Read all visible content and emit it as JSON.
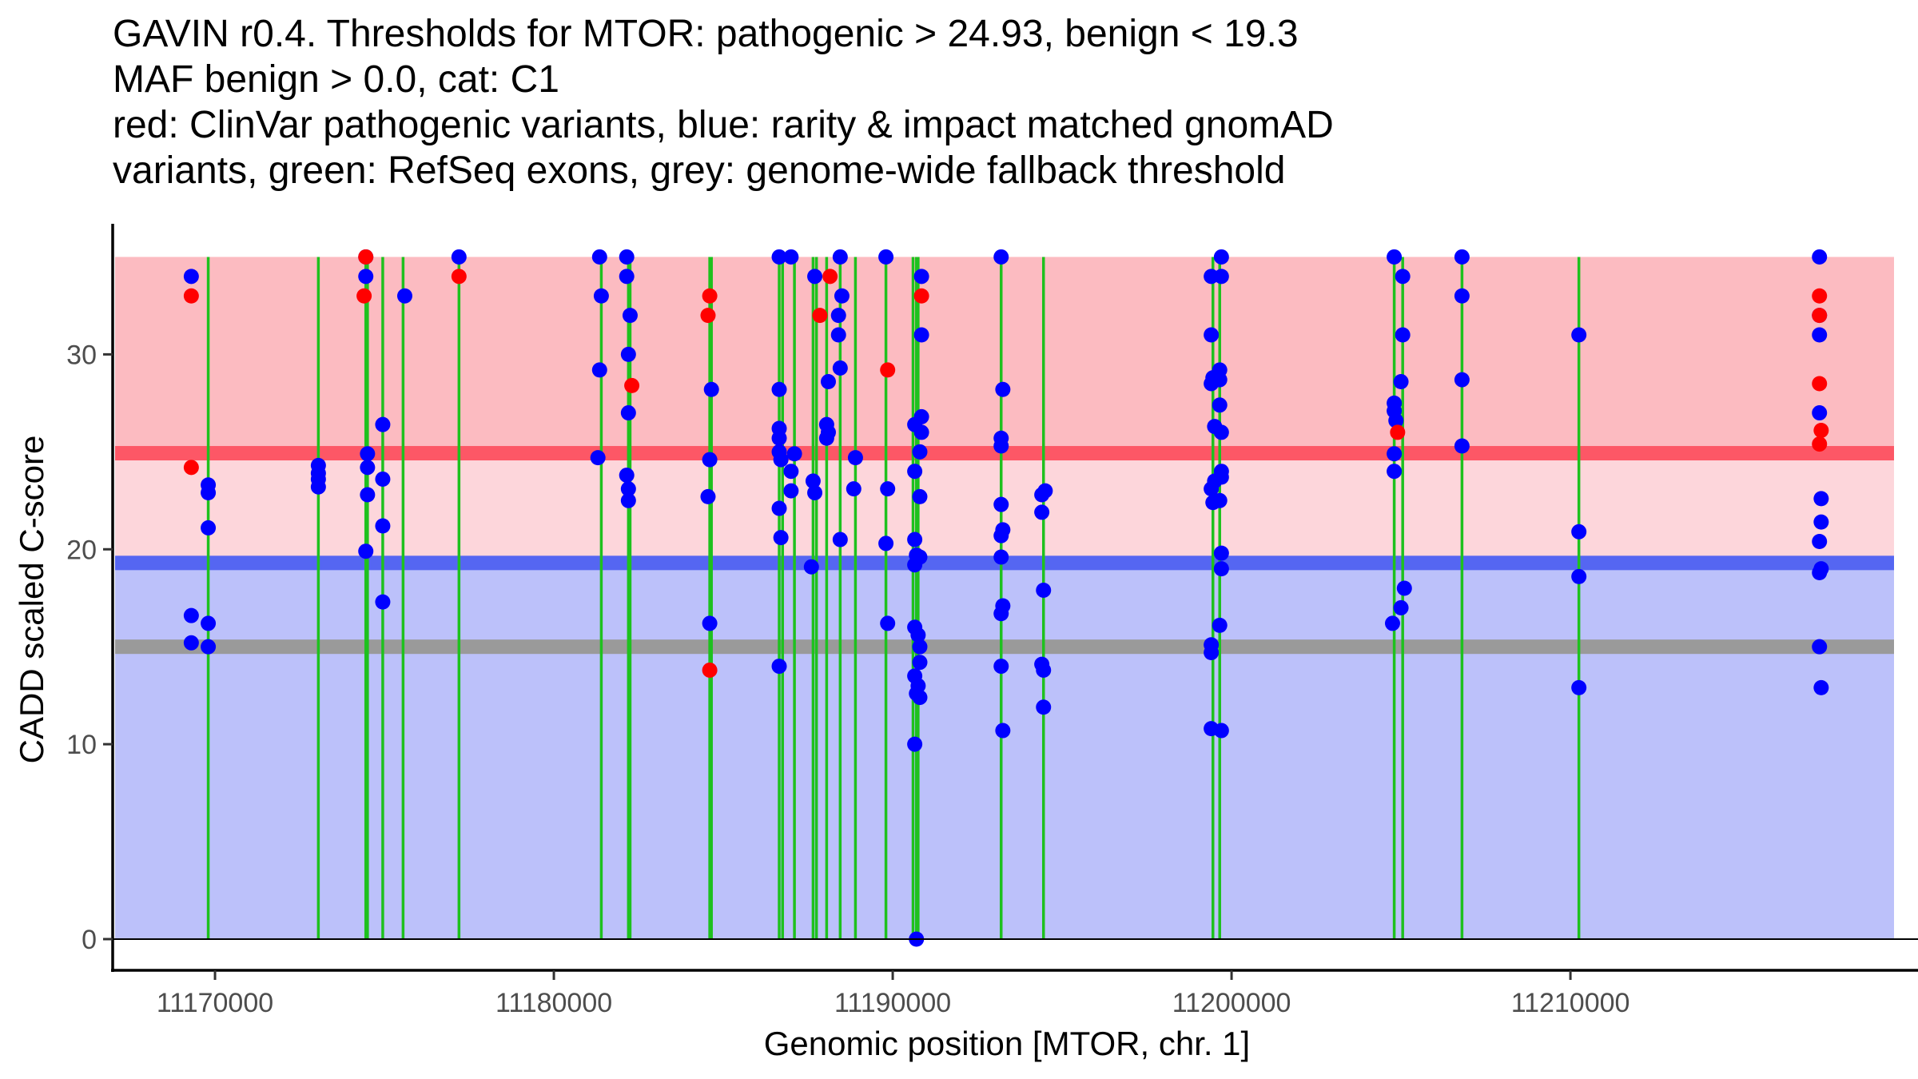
{
  "chart_data": {
    "type": "scatter",
    "title_lines": [
      "GAVIN r0.4. Thresholds for MTOR: pathogenic > 24.93, benign < 19.3",
      "MAF benign > 0.0, cat: C1",
      "red: ClinVar pathogenic variants, blue: rarity & impact matched gnomAD",
      "variants, green: RefSeq exons, grey: genome-wide fallback threshold"
    ],
    "xlabel": "Genomic position [MTOR, chr. 1]",
    "ylabel": "CADD scaled C-score",
    "xlim": [
      11166980,
      11219550
    ],
    "ylim": [
      -1.6,
      36.7
    ],
    "x_ticks": [
      11170000,
      11180000,
      11190000,
      11200000,
      11210000
    ],
    "x_tick_labels": [
      "11170000",
      "11180000",
      "11190000",
      "11200000",
      "11210000"
    ],
    "y_ticks": [
      0,
      10,
      20,
      30
    ],
    "y_tick_labels": [
      "0",
      "10",
      "20",
      "30"
    ],
    "grid": false,
    "regions": [
      {
        "name": "pathogenic-zone",
        "from": 24.93,
        "to": 35,
        "color": "#fcbbc1"
      },
      {
        "name": "vous-zone",
        "from": 19.3,
        "to": 24.93,
        "color": "#fdd6db"
      },
      {
        "name": "benign-zone",
        "from": 0,
        "to": 19.3,
        "color": "#bcc1fa"
      }
    ],
    "thresholds": [
      {
        "name": "pathogenic-threshold",
        "value": 24.93,
        "color": "#fd5766"
      },
      {
        "name": "benign-threshold",
        "value": 19.3,
        "color": "#5566f2"
      },
      {
        "name": "fallback-threshold",
        "value": 15.0,
        "color": "#9a9a9a"
      }
    ],
    "exons": [
      11169800,
      11173050,
      11174450,
      11174500,
      11174950,
      11175550,
      11177200,
      11181400,
      11182200,
      11182250,
      11184600,
      11184650,
      11186650,
      11186750,
      11187100,
      11187650,
      11187750,
      11188050,
      11188450,
      11188900,
      11189800,
      11190600,
      11190700,
      11190750,
      11193200,
      11194450,
      11199450,
      11199650,
      11204800,
      11205050,
      11206800,
      11210250
    ],
    "series": [
      {
        "name": "ClinVar pathogenic variants",
        "color": "#ff0000",
        "points": [
          [
            11169300,
            33.0
          ],
          [
            11169300,
            24.2
          ],
          [
            11174450,
            35.0
          ],
          [
            11174400,
            33.0
          ],
          [
            11177200,
            34.0
          ],
          [
            11182300,
            28.4
          ],
          [
            11184600,
            33.0
          ],
          [
            11184550,
            32.0
          ],
          [
            11184600,
            13.8
          ],
          [
            11187850,
            32.0
          ],
          [
            11188150,
            34.0
          ],
          [
            11189850,
            29.2
          ],
          [
            11190850,
            33.0
          ],
          [
            11204900,
            26.0
          ],
          [
            11217350,
            33.0
          ],
          [
            11217350,
            32.0
          ],
          [
            11217350,
            28.5
          ],
          [
            11217400,
            26.1
          ],
          [
            11217350,
            25.4
          ]
        ]
      },
      {
        "name": "gnomAD matched variants",
        "color": "#0000ff",
        "points": [
          [
            11169300,
            34.0
          ],
          [
            11169300,
            16.6
          ],
          [
            11169300,
            15.2
          ],
          [
            11169800,
            23.3
          ],
          [
            11169800,
            22.9
          ],
          [
            11169800,
            21.1
          ],
          [
            11169800,
            16.2
          ],
          [
            11169800,
            15.0
          ],
          [
            11173050,
            24.3
          ],
          [
            11173050,
            23.9
          ],
          [
            11173050,
            23.6
          ],
          [
            11173050,
            23.2
          ],
          [
            11174450,
            35.0
          ],
          [
            11174450,
            34.0
          ],
          [
            11174500,
            24.9
          ],
          [
            11174500,
            24.2
          ],
          [
            11174500,
            22.8
          ],
          [
            11174450,
            19.9
          ],
          [
            11174950,
            26.4
          ],
          [
            11174950,
            23.6
          ],
          [
            11174950,
            21.2
          ],
          [
            11174950,
            17.3
          ],
          [
            11175600,
            33.0
          ],
          [
            11177200,
            35.0
          ],
          [
            11181350,
            35.0
          ],
          [
            11181400,
            33.0
          ],
          [
            11181350,
            29.2
          ],
          [
            11181300,
            24.7
          ],
          [
            11182150,
            35.0
          ],
          [
            11182150,
            34.0
          ],
          [
            11182250,
            32.0
          ],
          [
            11182200,
            30.0
          ],
          [
            11182200,
            27.0
          ],
          [
            11182150,
            23.8
          ],
          [
            11182200,
            23.1
          ],
          [
            11182200,
            22.5
          ],
          [
            11184650,
            28.2
          ],
          [
            11184600,
            24.6
          ],
          [
            11184550,
            22.7
          ],
          [
            11184600,
            16.2
          ],
          [
            11186650,
            35.0
          ],
          [
            11186650,
            28.2
          ],
          [
            11186650,
            26.2
          ],
          [
            11186650,
            25.7
          ],
          [
            11186650,
            25.0
          ],
          [
            11186700,
            24.6
          ],
          [
            11186650,
            22.1
          ],
          [
            11186700,
            20.6
          ],
          [
            11186650,
            14.0
          ],
          [
            11187000,
            35.0
          ],
          [
            11187100,
            24.9
          ],
          [
            11187000,
            24.0
          ],
          [
            11187000,
            23.0
          ],
          [
            11187700,
            34.0
          ],
          [
            11187650,
            23.5
          ],
          [
            11187700,
            22.9
          ],
          [
            11187600,
            19.1
          ],
          [
            11188100,
            28.6
          ],
          [
            11188050,
            26.4
          ],
          [
            11188100,
            26.0
          ],
          [
            11188050,
            25.7
          ],
          [
            11188450,
            35.0
          ],
          [
            11188500,
            33.0
          ],
          [
            11188400,
            32.0
          ],
          [
            11188400,
            31.0
          ],
          [
            11188450,
            29.3
          ],
          [
            11188450,
            20.5
          ],
          [
            11188900,
            24.7
          ],
          [
            11188850,
            23.1
          ],
          [
            11189800,
            35.0
          ],
          [
            11189850,
            23.1
          ],
          [
            11189800,
            20.3
          ],
          [
            11189850,
            16.2
          ],
          [
            11190650,
            26.4
          ],
          [
            11190850,
            26.8
          ],
          [
            11190850,
            26.0
          ],
          [
            11190800,
            25.0
          ],
          [
            11190650,
            24.0
          ],
          [
            11190800,
            22.7
          ],
          [
            11190650,
            20.5
          ],
          [
            11190700,
            19.7
          ],
          [
            11190800,
            19.6
          ],
          [
            11190650,
            19.2
          ],
          [
            11190650,
            16.0
          ],
          [
            11190750,
            15.6
          ],
          [
            11190800,
            15.0
          ],
          [
            11190800,
            14.2
          ],
          [
            11190650,
            13.5
          ],
          [
            11190750,
            13.0
          ],
          [
            11190700,
            12.6
          ],
          [
            11190800,
            12.4
          ],
          [
            11190650,
            10.0
          ],
          [
            11190700,
            0.0
          ],
          [
            11190850,
            34.0
          ],
          [
            11190850,
            31.0
          ],
          [
            11193200,
            35.0
          ],
          [
            11193250,
            28.2
          ],
          [
            11193200,
            25.7
          ],
          [
            11193200,
            25.3
          ],
          [
            11193200,
            22.3
          ],
          [
            11193250,
            21.0
          ],
          [
            11193200,
            20.7
          ],
          [
            11193200,
            19.6
          ],
          [
            11193250,
            17.1
          ],
          [
            11193200,
            16.7
          ],
          [
            11193200,
            14.0
          ],
          [
            11193250,
            10.7
          ],
          [
            11194400,
            22.8
          ],
          [
            11194500,
            23.0
          ],
          [
            11194400,
            21.9
          ],
          [
            11194450,
            17.9
          ],
          [
            11194400,
            14.1
          ],
          [
            11194450,
            13.8
          ],
          [
            11194450,
            11.9
          ],
          [
            11199400,
            34.0
          ],
          [
            11199400,
            31.0
          ],
          [
            11199450,
            28.8
          ],
          [
            11199400,
            28.5
          ],
          [
            11199500,
            26.3
          ],
          [
            11199400,
            23.1
          ],
          [
            11199500,
            23.5
          ],
          [
            11199450,
            22.4
          ],
          [
            11199400,
            15.1
          ],
          [
            11199400,
            14.7
          ],
          [
            11199400,
            10.8
          ],
          [
            11199700,
            35.0
          ],
          [
            11199700,
            34.0
          ],
          [
            11199650,
            29.2
          ],
          [
            11199650,
            28.7
          ],
          [
            11199650,
            27.4
          ],
          [
            11199700,
            26.0
          ],
          [
            11199700,
            24.0
          ],
          [
            11199700,
            23.7
          ],
          [
            11199650,
            22.5
          ],
          [
            11199700,
            19.8
          ],
          [
            11199700,
            19.0
          ],
          [
            11199650,
            16.1
          ],
          [
            11199700,
            10.7
          ],
          [
            11204800,
            35.0
          ],
          [
            11204800,
            27.5
          ],
          [
            11204800,
            27.1
          ],
          [
            11204850,
            26.6
          ],
          [
            11204800,
            24.9
          ],
          [
            11204800,
            24.0
          ],
          [
            11204750,
            16.2
          ],
          [
            11205050,
            34.0
          ],
          [
            11205050,
            31.0
          ],
          [
            11205000,
            28.6
          ],
          [
            11205100,
            18.0
          ],
          [
            11205000,
            17.0
          ],
          [
            11206800,
            35.0
          ],
          [
            11206800,
            33.0
          ],
          [
            11206800,
            28.7
          ],
          [
            11206800,
            25.3
          ],
          [
            11210250,
            31.0
          ],
          [
            11210250,
            20.9
          ],
          [
            11210250,
            18.6
          ],
          [
            11210250,
            12.9
          ],
          [
            11217350,
            35.0
          ],
          [
            11217350,
            32.0
          ],
          [
            11217350,
            31.0
          ],
          [
            11217350,
            27.0
          ],
          [
            11217400,
            22.6
          ],
          [
            11217400,
            21.4
          ],
          [
            11217350,
            20.4
          ],
          [
            11217400,
            19.0
          ],
          [
            11217350,
            18.8
          ],
          [
            11217350,
            15.0
          ],
          [
            11217400,
            12.9
          ]
        ]
      }
    ]
  }
}
